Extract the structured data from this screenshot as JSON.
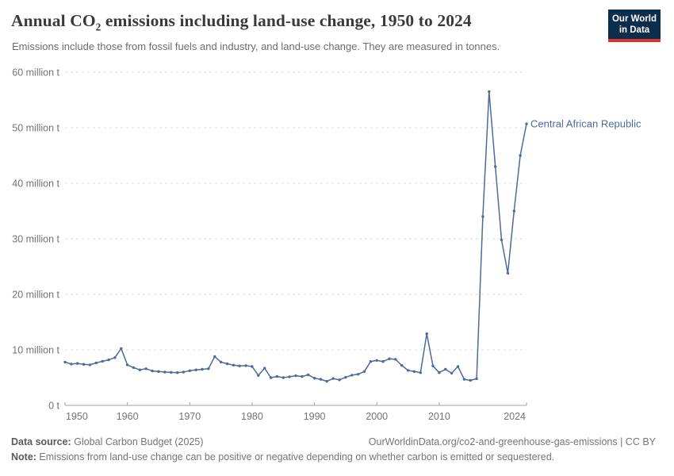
{
  "header": {
    "title_prefix": "Annual CO",
    "title_sub": "2",
    "title_suffix": " emissions including land-use change, 1950 to 2024",
    "subtitle": "Emissions include those from fossil fuels and industry, and land-use change. They are measured in tonnes."
  },
  "logo": {
    "line1": "Our World",
    "line2": "in Data"
  },
  "chart_data": {
    "type": "line",
    "title": "Annual CO2 emissions including land-use change, 1950 to 2024",
    "subtitle": "Emissions include those from fossil fuels and industry, and land-use change. They are measured in tonnes.",
    "unit": "million tonnes",
    "xlabel": "",
    "ylabel": "",
    "xlim": [
      1950,
      2024
    ],
    "ylim": [
      0,
      60
    ],
    "grid": "dashed-horizontal",
    "legend_position": "end-of-line-label",
    "x_ticks": [
      1950,
      1960,
      1970,
      1980,
      1990,
      2000,
      2010,
      2024
    ],
    "y_ticks": [
      {
        "value": 0,
        "label": "0 t"
      },
      {
        "value": 10,
        "label": "10 million t"
      },
      {
        "value": 20,
        "label": "20 million t"
      },
      {
        "value": 30,
        "label": "30 million t"
      },
      {
        "value": 40,
        "label": "40 million t"
      },
      {
        "value": 50,
        "label": "50 million t"
      },
      {
        "value": 60,
        "label": "60 million t"
      }
    ],
    "series": [
      {
        "name": "Central African Republic",
        "color": "#4c6a9c",
        "years": [
          1950,
          1951,
          1952,
          1953,
          1954,
          1955,
          1956,
          1957,
          1958,
          1959,
          1960,
          1961,
          1962,
          1963,
          1964,
          1965,
          1966,
          1967,
          1968,
          1969,
          1970,
          1971,
          1972,
          1973,
          1974,
          1975,
          1976,
          1977,
          1978,
          1979,
          1980,
          1981,
          1982,
          1983,
          1984,
          1985,
          1986,
          1987,
          1988,
          1989,
          1990,
          1991,
          1992,
          1993,
          1994,
          1995,
          1996,
          1997,
          1998,
          1999,
          2000,
          2001,
          2002,
          2003,
          2004,
          2005,
          2006,
          2007,
          2008,
          2009,
          2010,
          2011,
          2012,
          2013,
          2014,
          2015,
          2016,
          2017,
          2018,
          2019,
          2020,
          2021,
          2022,
          2023,
          2024
        ],
        "values": [
          7.8,
          7.45,
          7.55,
          7.4,
          7.3,
          7.65,
          7.95,
          8.2,
          8.6,
          10.25,
          7.3,
          6.8,
          6.4,
          6.6,
          6.2,
          6.1,
          6.0,
          5.95,
          5.9,
          6.0,
          6.25,
          6.4,
          6.5,
          6.6,
          8.8,
          7.8,
          7.5,
          7.25,
          7.1,
          7.15,
          7.0,
          5.4,
          6.7,
          5.0,
          5.2,
          5.0,
          5.15,
          5.35,
          5.2,
          5.5,
          4.9,
          4.7,
          4.35,
          4.85,
          4.6,
          5.05,
          5.45,
          5.6,
          6.1,
          7.9,
          8.1,
          7.9,
          8.4,
          8.3,
          7.2,
          6.3,
          6.1,
          5.9,
          12.9,
          7.1,
          5.9,
          6.5,
          5.8,
          7.0,
          4.7,
          4.5,
          4.8,
          34.0,
          56.5,
          43.0,
          29.8,
          23.8,
          35.0,
          45.0,
          50.7
        ]
      }
    ]
  },
  "footer": {
    "datasource_label": "Data source:",
    "datasource_value": " Global Carbon Budget (2025)",
    "credit": "OurWorldinData.org/co2-and-greenhouse-gas-emissions | CC BY",
    "note_label": "Note:",
    "note_value": " Emissions from land-use change can be positive or negative depending on whether carbon is emitted or sequestered."
  },
  "colors": {
    "line": "#4c6a9c",
    "grid": "#dcdcdc",
    "axis": "#a2a2a2",
    "tick_label": "#737373",
    "title": "#3a3a3a",
    "subtitle": "#6d6d6d",
    "footer": "#757575",
    "logo_bg": "#0d2d4d",
    "logo_red": "#d6342c"
  }
}
